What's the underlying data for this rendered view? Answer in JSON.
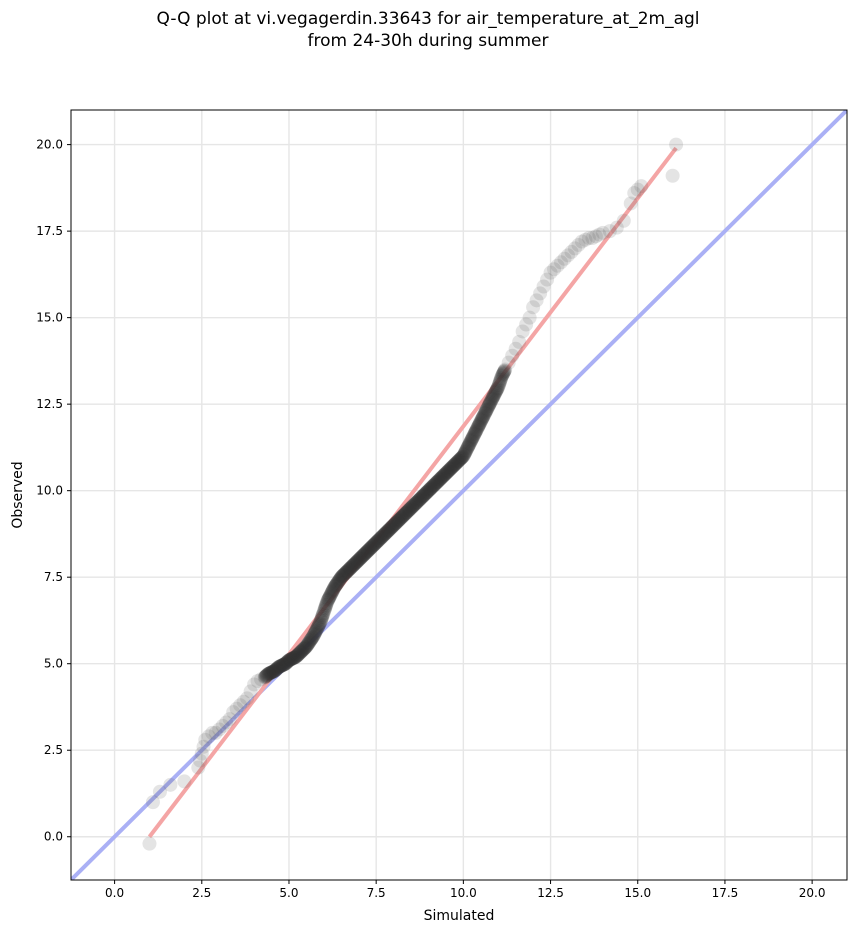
{
  "title": {
    "line1": "Q-Q plot at vi.vegagerdin.33643 for air_temperature_at_2m_agl",
    "line2": "from 24-30h during summer"
  },
  "chart_data": {
    "type": "scatter",
    "xlabel": "Simulated",
    "ylabel": "Observed",
    "xlim": [
      -1.25,
      21.0
    ],
    "ylim": [
      -1.25,
      21.0
    ],
    "xticks": [
      0.0,
      2.5,
      5.0,
      7.5,
      10.0,
      12.5,
      15.0,
      17.5,
      20.0
    ],
    "yticks": [
      0.0,
      2.5,
      5.0,
      7.5,
      10.0,
      12.5,
      15.0,
      17.5,
      20.0
    ],
    "xtick_labels": [
      "0.0",
      "2.5",
      "5.0",
      "7.5",
      "10.0",
      "12.5",
      "15.0",
      "17.5",
      "20.0"
    ],
    "ytick_labels": [
      "0.0",
      "2.5",
      "5.0",
      "7.5",
      "10.0",
      "12.5",
      "15.0",
      "17.5",
      "20.0"
    ],
    "grid": true,
    "reference_line": {
      "x": [
        -1.25,
        21.0
      ],
      "y": [
        -1.25,
        21.0
      ],
      "color": "#aab0f5"
    },
    "fit_line": {
      "x": [
        1.0,
        16.1
      ],
      "y": [
        0.0,
        19.9
      ],
      "color": "#f4a5a5"
    },
    "quantiles": {
      "x": [
        1.0,
        1.1,
        1.3,
        1.6,
        2.0,
        2.4,
        2.45,
        2.5,
        2.55,
        2.6,
        2.7,
        2.8,
        2.9,
        3.0,
        3.1,
        3.2,
        3.3,
        3.4,
        3.5,
        3.6,
        3.7,
        3.8,
        3.9,
        4.0,
        4.1,
        4.2,
        4.3,
        4.4,
        4.5,
        4.6,
        4.7,
        4.8,
        4.9,
        5.0,
        5.1,
        5.2,
        5.3,
        5.4,
        5.5,
        5.6,
        5.7,
        5.8,
        5.9,
        6.0,
        6.1,
        6.2,
        6.3,
        6.4,
        6.5,
        6.6,
        6.7,
        6.8,
        6.9,
        7.0,
        7.1,
        7.2,
        7.3,
        7.4,
        7.5,
        7.6,
        7.7,
        7.8,
        7.9,
        8.0,
        8.1,
        8.2,
        8.3,
        8.4,
        8.5,
        8.6,
        8.7,
        8.8,
        8.9,
        9.0,
        9.1,
        9.2,
        9.3,
        9.4,
        9.5,
        9.6,
        9.7,
        9.8,
        9.9,
        10.0,
        10.1,
        10.2,
        10.3,
        10.4,
        10.5,
        10.6,
        10.7,
        10.8,
        10.9,
        11.0,
        11.1,
        11.2,
        11.3,
        11.4,
        11.5,
        11.6,
        11.7,
        11.8,
        11.9,
        12.0,
        12.1,
        12.2,
        12.3,
        12.4,
        12.5,
        12.6,
        12.7,
        12.8,
        12.9,
        13.0,
        13.1,
        13.2,
        13.3,
        13.4,
        13.5,
        13.6,
        13.7,
        13.8,
        13.9,
        14.0,
        14.2,
        14.4,
        14.6,
        14.8,
        14.9,
        15.0,
        15.1,
        16.0,
        16.1
      ],
      "y": [
        -0.2,
        1.0,
        1.3,
        1.5,
        1.6,
        2.0,
        2.2,
        2.4,
        2.6,
        2.8,
        2.9,
        3.0,
        3.0,
        3.1,
        3.2,
        3.3,
        3.4,
        3.6,
        3.7,
        3.8,
        3.9,
        4.0,
        4.2,
        4.4,
        4.5,
        4.55,
        4.6,
        4.7,
        4.75,
        4.8,
        4.9,
        4.95,
        5.0,
        5.1,
        5.15,
        5.2,
        5.3,
        5.4,
        5.5,
        5.65,
        5.8,
        6.0,
        6.2,
        6.5,
        6.8,
        7.0,
        7.2,
        7.35,
        7.5,
        7.6,
        7.7,
        7.8,
        7.9,
        8.0,
        8.1,
        8.2,
        8.3,
        8.4,
        8.5,
        8.6,
        8.7,
        8.8,
        8.9,
        9.0,
        9.1,
        9.2,
        9.3,
        9.4,
        9.5,
        9.6,
        9.7,
        9.8,
        9.9,
        10.0,
        10.1,
        10.2,
        10.3,
        10.4,
        10.5,
        10.6,
        10.7,
        10.8,
        10.9,
        11.0,
        11.2,
        11.4,
        11.6,
        11.8,
        12.0,
        12.2,
        12.4,
        12.6,
        12.8,
        13.0,
        13.3,
        13.5,
        13.7,
        13.9,
        14.1,
        14.3,
        14.6,
        14.8,
        15.0,
        15.3,
        15.5,
        15.7,
        15.9,
        16.1,
        16.3,
        16.4,
        16.5,
        16.6,
        16.7,
        16.8,
        16.9,
        17.0,
        17.1,
        17.2,
        17.25,
        17.3,
        17.3,
        17.35,
        17.4,
        17.45,
        17.5,
        17.6,
        17.8,
        18.3,
        18.6,
        18.7,
        18.8,
        19.1,
        20.0
      ]
    }
  }
}
